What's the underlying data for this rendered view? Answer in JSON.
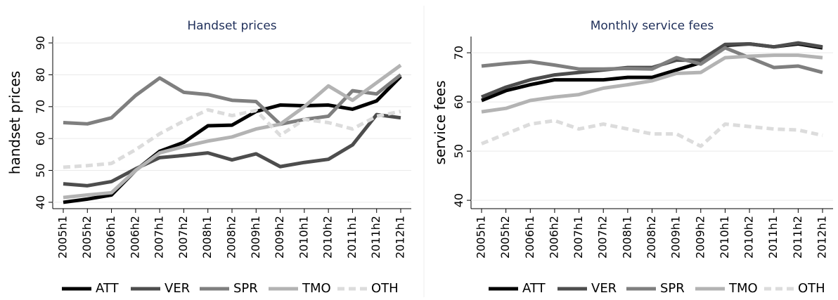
{
  "chart_data": [
    {
      "type": "line",
      "title": "Handset prices",
      "y_label": "handset prices",
      "categories": [
        "2005h1",
        "2005h2",
        "2006h1",
        "2006h2",
        "2007h1",
        "2007h2",
        "2008h1",
        "2008h2",
        "2009h1",
        "2009h2",
        "2010h1",
        "2010h2",
        "2011h1",
        "2011h2",
        "2012h1"
      ],
      "ylim": [
        38,
        92
      ],
      "yticks": [
        40,
        50,
        60,
        70,
        80,
        90
      ],
      "grid": true,
      "legend": "bottom",
      "series": [
        {
          "name": "ATT",
          "color": "#000000",
          "values": [
            40,
            41,
            42.3,
            50,
            56,
            58.8,
            64,
            64.2,
            68.5,
            70.5,
            70.3,
            70.5,
            69.2,
            71.8,
            79.5
          ]
        },
        {
          "name": "VER",
          "color": "#4d4d4d",
          "values": [
            45.8,
            45.2,
            46.5,
            50.5,
            54,
            54.7,
            55.5,
            53.3,
            55.2,
            51.2,
            52.5,
            53.5,
            58,
            67.5,
            66.5
          ]
        },
        {
          "name": "SPR",
          "color": "#7f7f7f",
          "values": [
            65,
            64.6,
            66.5,
            73.5,
            79,
            74.5,
            73.8,
            72,
            71.6,
            64.5,
            66,
            67,
            75,
            74,
            80
          ]
        },
        {
          "name": "TMO",
          "color": "#b3b3b3",
          "values": [
            41.5,
            42.3,
            43,
            50,
            55.5,
            57.5,
            59.2,
            60.5,
            63,
            64.5,
            70,
            76.5,
            72,
            77.5,
            83
          ]
        },
        {
          "name": "OTH",
          "color": "#dcdcdc",
          "dashed": true,
          "values": [
            51,
            51.5,
            52.2,
            56.5,
            61.5,
            65.5,
            69,
            67.2,
            68.8,
            61,
            66,
            65,
            63,
            67,
            68.5
          ]
        }
      ]
    },
    {
      "type": "line",
      "title": "Monthly service fees",
      "y_label": "service fees",
      "categories": [
        "2005h1",
        "2005h2",
        "2006h1",
        "2006h2",
        "2007h1",
        "2007h2",
        "2008h1",
        "2008h2",
        "2009h1",
        "2009h2",
        "2010h1",
        "2010h2",
        "2011h1",
        "2011h2",
        "2012h1"
      ],
      "ylim": [
        38.3,
        73.3
      ],
      "yticks": [
        40,
        50,
        60,
        70
      ],
      "grid": true,
      "legend": "bottom",
      "series": [
        {
          "name": "ATT",
          "color": "#000000",
          "values": [
            60.3,
            62.3,
            63.5,
            64.5,
            64.5,
            64.5,
            65,
            65,
            66.5,
            68,
            71.5,
            71.8,
            71.2,
            71.8,
            71
          ]
        },
        {
          "name": "VER",
          "color": "#4d4d4d",
          "values": [
            61,
            63,
            64.5,
            65.5,
            66,
            66.5,
            67,
            67,
            68.5,
            68.5,
            71.7,
            71.8,
            71.2,
            72,
            71.2
          ]
        },
        {
          "name": "SPR",
          "color": "#7f7f7f",
          "values": [
            67.3,
            67.8,
            68.2,
            67.5,
            66.7,
            66.7,
            66.8,
            66.7,
            69,
            67.7,
            71,
            69,
            67,
            67.3,
            66
          ]
        },
        {
          "name": "TMO",
          "color": "#b3b3b3",
          "values": [
            58,
            58.7,
            60.3,
            61,
            61.5,
            62.8,
            63.5,
            64.3,
            65.8,
            66,
            69,
            69.3,
            69.5,
            69.5,
            69
          ]
        },
        {
          "name": "OTH",
          "color": "#dcdcdc",
          "dashed": true,
          "values": [
            51.5,
            53.5,
            55.5,
            56.2,
            54.5,
            55.5,
            54.5,
            53.5,
            53.5,
            51,
            55.5,
            55,
            54.5,
            54.3,
            53.2
          ]
        }
      ]
    }
  ]
}
